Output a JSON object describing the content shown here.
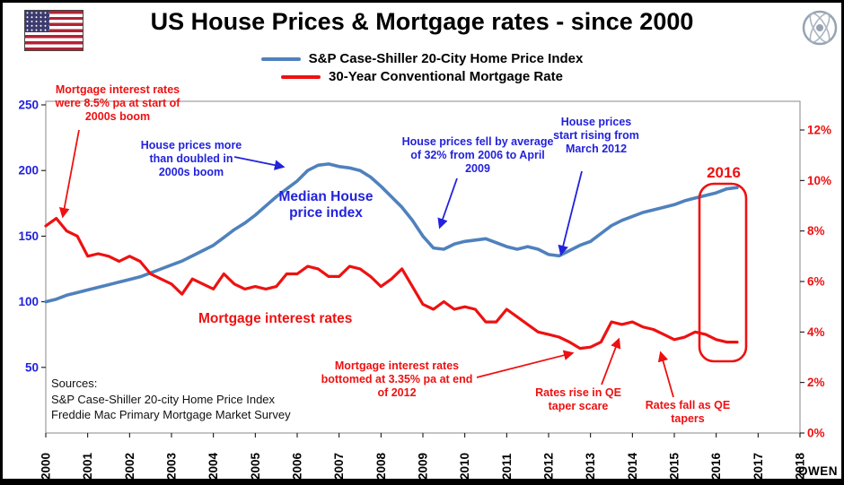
{
  "header": {
    "title": "US House Prices & Mortgage rates - since 2000",
    "flag_icon": "us-flag",
    "logo_icon": "globe-emblem",
    "watermark": "OWEN"
  },
  "colors": {
    "blue_line": "#4f81bd",
    "red_line": "#ee1111",
    "blue_text": "#2222dd",
    "red_text": "#ee1111"
  },
  "legend": {
    "items": [
      {
        "label": "S&P Case-Shiller 20-City Home Price Index",
        "color": "#4f81bd"
      },
      {
        "label": "30-Year Conventional Mortgage Rate",
        "color": "#ee1111"
      }
    ]
  },
  "chart_data": {
    "type": "line",
    "title": "US House Prices & Mortgage rates - since 2000",
    "grid": false,
    "legend_position": "top",
    "x_axis": {
      "range": [
        2000,
        2018
      ],
      "ticks": [
        2000,
        2001,
        2002,
        2003,
        2004,
        2005,
        2006,
        2007,
        2008,
        2009,
        2010,
        2011,
        2012,
        2013,
        2014,
        2015,
        2016,
        2017,
        2018
      ]
    },
    "left_y_axis": {
      "label_color": "#2222dd",
      "range": [
        0,
        250
      ],
      "ticks": [
        50,
        100,
        150,
        200,
        250
      ]
    },
    "right_y_axis": {
      "label_color": "#ee1111",
      "range": [
        0,
        12
      ],
      "ticks": [
        0,
        2,
        4,
        6,
        8,
        10,
        12
      ],
      "tick_suffix": "%"
    },
    "x": [
      2000,
      2000.25,
      2000.5,
      2000.75,
      2001,
      2001.25,
      2001.5,
      2001.75,
      2002,
      2002.25,
      2002.5,
      2002.75,
      2003,
      2003.25,
      2003.5,
      2003.75,
      2004,
      2004.25,
      2004.5,
      2004.75,
      2005,
      2005.25,
      2005.5,
      2005.75,
      2006,
      2006.25,
      2006.5,
      2006.75,
      2007,
      2007.25,
      2007.5,
      2007.75,
      2008,
      2008.25,
      2008.5,
      2008.75,
      2009,
      2009.25,
      2009.5,
      2009.75,
      2010,
      2010.25,
      2010.5,
      2010.75,
      2011,
      2011.25,
      2011.5,
      2011.75,
      2012,
      2012.25,
      2012.5,
      2012.75,
      2013,
      2013.25,
      2013.5,
      2013.75,
      2014,
      2014.25,
      2014.5,
      2014.75,
      2015,
      2015.25,
      2015.5,
      2015.75,
      2016,
      2016.25,
      2016.5
    ],
    "series": [
      {
        "name": "S&P Case-Shiller 20-City Home Price Index",
        "axis": "left",
        "color": "#4f81bd",
        "values": [
          100,
          102,
          105,
          107,
          109,
          111,
          113,
          115,
          117,
          119,
          122,
          125,
          128,
          131,
          135,
          139,
          143,
          149,
          155,
          160,
          166,
          173,
          180,
          186,
          192,
          200,
          204,
          205,
          203,
          202,
          200,
          195,
          188,
          180,
          172,
          162,
          150,
          141,
          140,
          144,
          146,
          147,
          148,
          145,
          142,
          140,
          142,
          140,
          136,
          135,
          139,
          143,
          146,
          152,
          158,
          162,
          165,
          168,
          170,
          172,
          174,
          177,
          179,
          181,
          183,
          186,
          187
        ]
      },
      {
        "name": "30-Year Conventional Mortgage Rate",
        "axis": "right",
        "color": "#ee1111",
        "values": [
          8.2,
          8.5,
          8.0,
          7.8,
          7.0,
          7.1,
          7.0,
          6.8,
          7.0,
          6.8,
          6.3,
          6.1,
          5.9,
          5.5,
          6.1,
          5.9,
          5.7,
          6.3,
          5.9,
          5.7,
          5.8,
          5.7,
          5.8,
          6.3,
          6.3,
          6.6,
          6.5,
          6.2,
          6.2,
          6.6,
          6.5,
          6.2,
          5.8,
          6.1,
          6.5,
          5.8,
          5.1,
          4.9,
          5.2,
          4.9,
          5.0,
          4.9,
          4.4,
          4.4,
          4.9,
          4.6,
          4.3,
          4.0,
          3.9,
          3.8,
          3.6,
          3.35,
          3.4,
          3.6,
          4.4,
          4.3,
          4.4,
          4.2,
          4.1,
          3.9,
          3.7,
          3.8,
          4.0,
          3.9,
          3.7,
          3.6,
          3.6
        ]
      }
    ]
  },
  "annotations": {
    "rates_start": {
      "text": "Mortgage interest rates were 8.5% pa at start of 2000s boom"
    },
    "prices_doubled": {
      "text": "House prices more than doubled in 2000s boom"
    },
    "median_label": {
      "text": "Median House price index"
    },
    "prices_fell": {
      "text": "House prices fell by average of 32% from 2006 to April 2009"
    },
    "prices_rising": {
      "text": "House prices start rising from March 2012"
    },
    "mortgage_label": {
      "text": "Mortgage interest rates"
    },
    "rates_bottomed": {
      "text": "Mortgage interest rates bottomed at 3.35% pa at end of 2012"
    },
    "taper_scare": {
      "text": "Rates rise in QE taper scare"
    },
    "qe_tapers": {
      "text": "Rates fall as QE tapers"
    }
  },
  "highlight": {
    "label": "2016",
    "color": "#ee1111"
  },
  "sources": {
    "title": "Sources:",
    "lines": [
      "S&P Case-Shiller 20-city Home Price Index",
      "Freddie Mac Primary Mortgage Market Survey"
    ]
  }
}
